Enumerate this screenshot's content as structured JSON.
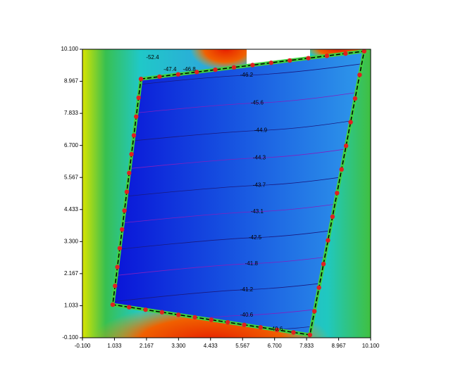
{
  "chart_data": {
    "type": "contour",
    "xlim": [
      -0.1,
      10.1
    ],
    "ylim": [
      -0.1,
      10.1
    ],
    "xticks": [
      {
        "value": -0.1,
        "label": "-0.100"
      },
      1.033,
      2.167,
      {
        "value": 3.3,
        "label": "3.300"
      },
      4.433,
      5.567,
      {
        "value": 6.7,
        "label": "6.700"
      },
      7.833,
      8.967,
      {
        "value": 10.1,
        "label": "10.100"
      }
    ],
    "yticks": [
      {
        "value": -0.1,
        "label": "-0.100"
      },
      1.033,
      2.167,
      {
        "value": 3.3,
        "label": "3.300"
      },
      4.433,
      5.567,
      {
        "value": 6.7,
        "label": "6.700"
      },
      7.833,
      8.967,
      {
        "value": 10.1,
        "label": "10.100"
      }
    ],
    "boundary": {
      "x": [
        1.97,
        9.87,
        7.95,
        0.97
      ],
      "y": [
        9.05,
        10.03,
        0.0,
        1.07
      ]
    },
    "contour_labels": {
      "x": [
        5.71,
        6.08,
        6.21,
        6.16,
        6.16,
        6.08,
        6.01,
        5.88,
        5.71,
        5.71,
        6.76,
        2.38,
        3.0,
        3.68
      ],
      "y": [
        9.18,
        8.2,
        7.23,
        6.26,
        5.29,
        4.36,
        3.44,
        2.52,
        1.6,
        0.7,
        0.2,
        9.8,
        9.38,
        9.38
      ],
      "values": [
        -46.2,
        -45.6,
        -44.9,
        -44.3,
        -43.7,
        -43.1,
        -42.5,
        -41.8,
        -41.2,
        -40.6,
        -40.6,
        -52.4,
        -47.4,
        -46.8
      ]
    }
  }
}
